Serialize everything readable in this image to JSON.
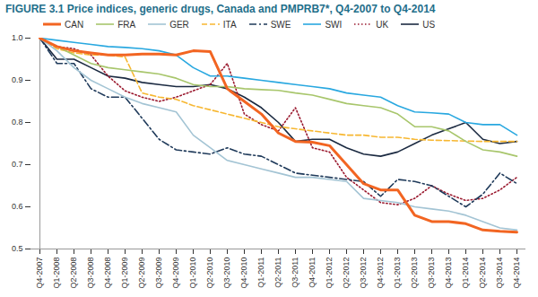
{
  "chart_data": {
    "type": "line",
    "title": "FIGURE 3.1 Price indices, generic drugs, Canada and PMPRB7*, Q4-2007 to Q4-2014",
    "categories": [
      "Q4-2007",
      "Q1-2008",
      "Q2-2008",
      "Q3-2008",
      "Q4-2008",
      "Q1-2009",
      "Q2-2009",
      "Q3-2009",
      "Q4-2009",
      "Q1-2010",
      "Q2-2010",
      "Q3-2010",
      "Q4-2010",
      "Q1-2011",
      "Q2-2011",
      "Q3-2011",
      "Q4-2011",
      "Q1-2012",
      "Q2-2012",
      "Q3-2012",
      "Q4-2012",
      "Q1-2013",
      "Q2-2013",
      "Q3-2013",
      "Q4-2013",
      "Q1-2014",
      "Q2-2014",
      "Q3-2014",
      "Q4-2014"
    ],
    "series": [
      {
        "name": "CAN",
        "color": "#f26522",
        "line_style": "solid",
        "values": [
          1.0,
          0.98,
          0.97,
          0.965,
          0.96,
          0.96,
          0.962,
          0.962,
          0.96,
          0.97,
          0.968,
          0.88,
          0.85,
          0.82,
          0.775,
          0.755,
          0.753,
          0.745,
          0.7,
          0.655,
          0.64,
          0.64,
          0.58,
          0.565,
          0.565,
          0.56,
          0.545,
          0.542,
          0.54
        ]
      },
      {
        "name": "FRA",
        "color": "#a8c66c",
        "line_style": "solid",
        "values": [
          1.0,
          0.98,
          0.96,
          0.94,
          0.93,
          0.925,
          0.92,
          0.915,
          0.905,
          0.89,
          0.885,
          0.885,
          0.88,
          0.878,
          0.876,
          0.87,
          0.865,
          0.855,
          0.845,
          0.84,
          0.835,
          0.82,
          0.79,
          0.79,
          0.78,
          0.755,
          0.735,
          0.73,
          0.72
        ]
      },
      {
        "name": "GER",
        "color": "#a3c4d4",
        "line_style": "solid",
        "values": [
          1.0,
          0.97,
          0.93,
          0.9,
          0.88,
          0.86,
          0.845,
          0.835,
          0.825,
          0.77,
          0.74,
          0.71,
          0.7,
          0.69,
          0.68,
          0.67,
          0.67,
          0.665,
          0.66,
          0.62,
          0.615,
          0.61,
          0.6,
          0.595,
          0.59,
          0.58,
          0.565,
          0.55,
          0.545
        ]
      },
      {
        "name": "ITA",
        "color": "#f7b731",
        "line_style": "dashed",
        "values": [
          1.0,
          0.975,
          0.965,
          0.96,
          0.96,
          0.955,
          0.87,
          0.86,
          0.855,
          0.84,
          0.83,
          0.82,
          0.81,
          0.8,
          0.79,
          0.785,
          0.78,
          0.775,
          0.77,
          0.77,
          0.765,
          0.765,
          0.76,
          0.758,
          0.757,
          0.756,
          0.755,
          0.755,
          0.755
        ]
      },
      {
        "name": "SWE",
        "color": "#1f3a5a",
        "line_style": "dashdot",
        "values": [
          1.0,
          0.94,
          0.94,
          0.88,
          0.86,
          0.86,
          0.81,
          0.76,
          0.735,
          0.73,
          0.725,
          0.74,
          0.725,
          0.72,
          0.7,
          0.68,
          0.675,
          0.67,
          0.665,
          0.66,
          0.625,
          0.665,
          0.66,
          0.65,
          0.625,
          0.6,
          0.63,
          0.68,
          0.655
        ]
      },
      {
        "name": "SWI",
        "color": "#29a8e0",
        "line_style": "solid",
        "values": [
          1.0,
          0.995,
          0.99,
          0.985,
          0.98,
          0.978,
          0.975,
          0.97,
          0.96,
          0.93,
          0.91,
          0.91,
          0.905,
          0.9,
          0.895,
          0.89,
          0.885,
          0.88,
          0.87,
          0.865,
          0.86,
          0.84,
          0.825,
          0.823,
          0.82,
          0.8,
          0.795,
          0.795,
          0.77
        ]
      },
      {
        "name": "UK",
        "color": "#9b1b30",
        "line_style": "dotted",
        "values": [
          1.0,
          0.98,
          0.975,
          0.96,
          0.91,
          0.875,
          0.86,
          0.85,
          0.86,
          0.875,
          0.89,
          0.94,
          0.82,
          0.795,
          0.78,
          0.835,
          0.74,
          0.73,
          0.67,
          0.64,
          0.61,
          0.605,
          0.62,
          0.65,
          0.63,
          0.615,
          0.62,
          0.64,
          0.67
        ]
      },
      {
        "name": "US",
        "color": "#1b2a41",
        "line_style": "solid",
        "values": [
          1.0,
          0.95,
          0.95,
          0.93,
          0.91,
          0.905,
          0.895,
          0.89,
          0.885,
          0.885,
          0.89,
          0.88,
          0.86,
          0.835,
          0.8,
          0.755,
          0.76,
          0.76,
          0.74,
          0.725,
          0.72,
          0.73,
          0.75,
          0.77,
          0.785,
          0.8,
          0.76,
          0.75,
          0.755
        ]
      }
    ],
    "ylim": [
      0.5,
      1.0
    ],
    "yticks": [
      0.5,
      0.6,
      0.7,
      0.8,
      0.9,
      {
        "value": 1.0,
        "label": "1.0"
      }
    ],
    "grid": false,
    "legend": "top"
  }
}
